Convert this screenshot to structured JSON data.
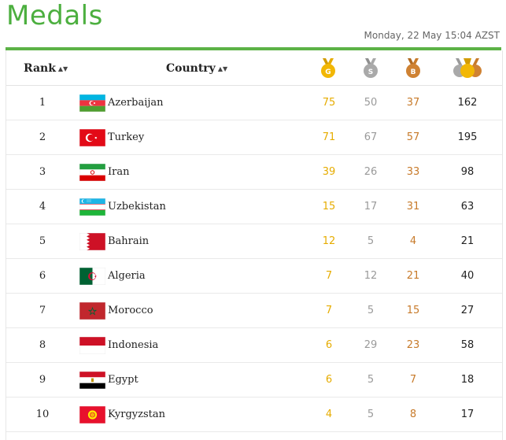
{
  "title": "Medals",
  "updated": "Monday, 22 May 15:04 AZST",
  "header": {
    "rank": "Rank",
    "country": "Country",
    "gold_letter": "G",
    "silver_letter": "S",
    "bronze_letter": "B",
    "sort_glyph": "▲▼"
  },
  "colors": {
    "accent": "#5cb246",
    "gold": "#e6ac00",
    "silver": "#9a9a9a",
    "bronze": "#c77a2a"
  },
  "rows": [
    {
      "rank": "1",
      "country": "Azerbaijan",
      "flag": "azerbaijan-flag",
      "gold": "75",
      "silver": "50",
      "bronze": "37",
      "total": "162"
    },
    {
      "rank": "2",
      "country": "Turkey",
      "flag": "turkey-flag",
      "gold": "71",
      "silver": "67",
      "bronze": "57",
      "total": "195"
    },
    {
      "rank": "3",
      "country": "Iran",
      "flag": "iran-flag",
      "gold": "39",
      "silver": "26",
      "bronze": "33",
      "total": "98"
    },
    {
      "rank": "4",
      "country": "Uzbekistan",
      "flag": "uzbekistan-flag",
      "gold": "15",
      "silver": "17",
      "bronze": "31",
      "total": "63"
    },
    {
      "rank": "5",
      "country": "Bahrain",
      "flag": "bahrain-flag",
      "gold": "12",
      "silver": "5",
      "bronze": "4",
      "total": "21"
    },
    {
      "rank": "6",
      "country": "Algeria",
      "flag": "algeria-flag",
      "gold": "7",
      "silver": "12",
      "bronze": "21",
      "total": "40"
    },
    {
      "rank": "7",
      "country": "Morocco",
      "flag": "morocco-flag",
      "gold": "7",
      "silver": "5",
      "bronze": "15",
      "total": "27"
    },
    {
      "rank": "8",
      "country": "Indonesia",
      "flag": "indonesia-flag",
      "gold": "6",
      "silver": "29",
      "bronze": "23",
      "total": "58"
    },
    {
      "rank": "9",
      "country": "Egypt",
      "flag": "egypt-flag",
      "gold": "6",
      "silver": "5",
      "bronze": "7",
      "total": "18"
    },
    {
      "rank": "10",
      "country": "Kyrgyzstan",
      "flag": "kyrgyzstan-flag",
      "gold": "4",
      "silver": "5",
      "bronze": "8",
      "total": "17"
    }
  ]
}
